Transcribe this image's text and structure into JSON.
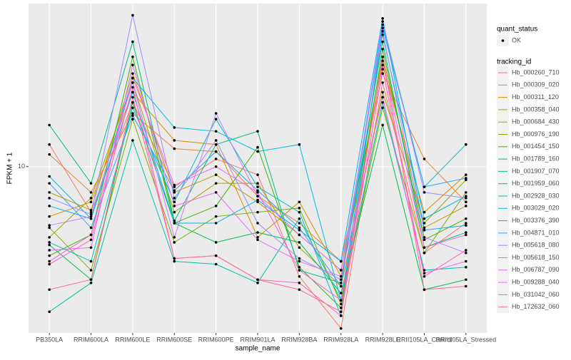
{
  "chart_data": {
    "type": "line",
    "x_label": "sample_name",
    "y_label": "FPKM + 1",
    "categories": [
      "PB350LA",
      "RRIM600LA",
      "RRIM600LE",
      "RRIM600SE",
      "RRIM600PE",
      "RRIM901LA",
      "RRIM928BA",
      "RRIM928LA",
      "RRIM928LE",
      "RRII105LA_Control",
      "RRII105LA_Stressed"
    ],
    "log_scale_y": true,
    "ylim": [
      3.5,
      28
    ],
    "yticks": [
      10
    ],
    "grid": true,
    "point_legend_title": "quant_status",
    "point_legend_levels": [
      "OK"
    ],
    "legend_title": "tracking_id",
    "series": [
      {
        "name": "Hb_000260_710",
        "color": "#F8766D",
        "values": [
          11.5,
          7.5,
          15,
          8.8,
          10.5,
          9.5,
          5.0,
          3.6,
          17,
          5.8,
          7.0
        ]
      },
      {
        "name": "Hb_000309_020",
        "color": "#EA8331",
        "values": [
          10.8,
          8.5,
          14,
          11.2,
          11.0,
          8.3,
          7.0,
          5.5,
          18,
          10.5,
          8.0
        ]
      },
      {
        "name": "Hb_000311_120",
        "color": "#D89000",
        "values": [
          7.3,
          8.0,
          16,
          11.8,
          11.5,
          6.4,
          8.0,
          5.0,
          19,
          7.5,
          9.5
        ]
      },
      {
        "name": "Hb_000358_040",
        "color": "#C09B00",
        "values": [
          8.5,
          7.6,
          18,
          8.5,
          9.5,
          8.0,
          6.5,
          5.2,
          20,
          6.8,
          7.8
        ]
      },
      {
        "name": "Hb_000684_430",
        "color": "#A3A500",
        "values": [
          6.4,
          8.2,
          17,
          7.5,
          9.0,
          9.0,
          6.0,
          4.7,
          16,
          7.0,
          9.2
        ]
      },
      {
        "name": "Hb_000976_190",
        "color": "#7CAE00",
        "values": [
          6.8,
          5.2,
          13.5,
          6.2,
          7.3,
          7.5,
          7.7,
          4.2,
          14.5,
          5.8,
          8.5
        ]
      },
      {
        "name": "Hb_001454_150",
        "color": "#39B600",
        "values": [
          5.7,
          6.5,
          20,
          7.0,
          7.8,
          11.3,
          5.3,
          4.1,
          21,
          6.3,
          7.2
        ]
      },
      {
        "name": "Hb_001789_160",
        "color": "#00BB4E",
        "values": [
          6.1,
          4.9,
          15,
          7.0,
          6.2,
          6.6,
          6.2,
          4.5,
          13,
          4.6,
          4.9
        ]
      },
      {
        "name": "Hb_001907_070",
        "color": "#00BF7D",
        "values": [
          13,
          9.0,
          22,
          7.1,
          11.5,
          12.5,
          5.2,
          4.8,
          22,
          6.0,
          6.6
        ]
      },
      {
        "name": "Hb_001959_060",
        "color": "#00C1A3",
        "values": [
          4.0,
          4.8,
          11.8,
          5.5,
          5.4,
          4.8,
          7.2,
          4.3,
          15,
          5.2,
          5.3
        ]
      },
      {
        "name": "Hb_002928_030",
        "color": "#00BFC4",
        "values": [
          6.2,
          5.5,
          14.5,
          8.0,
          13.5,
          8.8,
          7.5,
          3.9,
          24,
          8.8,
          11.5
        ]
      },
      {
        "name": "Hb_003029_020",
        "color": "#00BAE0",
        "values": [
          9.4,
          7.2,
          17.5,
          12.8,
          12.5,
          11.0,
          11.5,
          4.3,
          23,
          7.2,
          8.3
        ]
      },
      {
        "name": "Hb_003376_390",
        "color": "#00B0F6",
        "values": [
          7.8,
          7.2,
          16,
          7.0,
          7.0,
          8.1,
          6.7,
          5.5,
          25.5,
          6.7,
          6.9
        ]
      },
      {
        "name": "Hb_004871_010",
        "color": "#35A2FF",
        "values": [
          9.0,
          6.8,
          13.8,
          8.6,
          11.0,
          8.6,
          6.8,
          4.7,
          24.5,
          8.8,
          9.3
        ]
      },
      {
        "name": "Hb_005618_080",
        "color": "#9590FF",
        "values": [
          8.2,
          7.4,
          26,
          8.2,
          11.8,
          7.0,
          5.6,
          4.9,
          25,
          8.5,
          8.2
        ]
      },
      {
        "name": "Hb_005618_150",
        "color": "#C77CFF",
        "values": [
          6.9,
          7.3,
          17,
          6.4,
          14.0,
          8.3,
          6.5,
          5.2,
          23.5,
          6.4,
          5.8
        ]
      },
      {
        "name": "Hb_006787_090",
        "color": "#E76BF3",
        "values": [
          5.9,
          6.0,
          19,
          7.8,
          8.5,
          6.3,
          5.5,
          5.0,
          15.5,
          5.1,
          5.5
        ]
      },
      {
        "name": "Hb_009288_040",
        "color": "#FA62DB",
        "values": [
          5.5,
          6.5,
          17.5,
          8.9,
          10.0,
          8.5,
          5.2,
          4.3,
          19.5,
          6.0,
          6.5
        ]
      },
      {
        "name": "Hb_031042_060",
        "color": "#FF62BC",
        "values": [
          5.4,
          6.3,
          16.5,
          5.6,
          5.7,
          4.9,
          4.8,
          3.9,
          18.5,
          5.0,
          5.9
        ]
      },
      {
        "name": "Hb_172632_060",
        "color": "#FF6A98",
        "values": [
          4.6,
          4.9,
          15.5,
          5.6,
          5.7,
          4.9,
          4.6,
          4.0,
          20,
          4.6,
          4.7
        ]
      }
    ]
  }
}
